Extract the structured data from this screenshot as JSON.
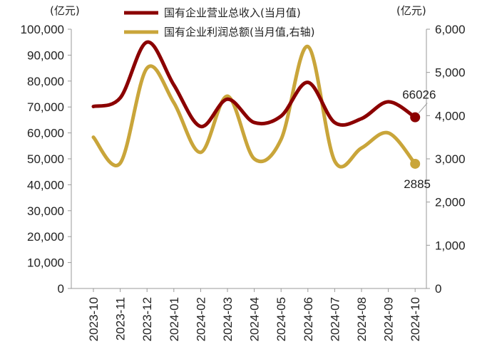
{
  "chart_data": {
    "type": "line",
    "left_unit": "(亿元)",
    "right_unit": "(亿元)",
    "x": [
      "2023-10",
      "2023-11",
      "2023-12",
      "2024-01",
      "2024-02",
      "2024-03",
      "2024-04",
      "2024-05",
      "2024-06",
      "2024-07",
      "2024-08",
      "2024-09",
      "2024-10"
    ],
    "y_left": {
      "min": 0,
      "max": 100000,
      "ticks": [
        "0",
        "10,000",
        "20,000",
        "30,000",
        "40,000",
        "50,000",
        "60,000",
        "70,000",
        "80,000",
        "90,000",
        "100,000"
      ]
    },
    "y_right": {
      "min": 0,
      "max": 6000,
      "ticks": [
        "0",
        "1,000",
        "2,000",
        "3,000",
        "4,000",
        "5,000",
        "6,000"
      ]
    },
    "series": [
      {
        "name": "国有企业营业总收入(当月值)",
        "axis": "left",
        "color": "#8B0000",
        "values": [
          70200,
          73500,
          95000,
          78500,
          62500,
          73000,
          64000,
          66500,
          79500,
          64000,
          65500,
          72000,
          66026
        ],
        "end_label": "66026"
      },
      {
        "name": "国有企业利润总额(当月值,右轴)",
        "axis": "right",
        "color": "#C9A53A",
        "values": [
          3500,
          2900,
          5100,
          4300,
          3150,
          4450,
          3000,
          3450,
          5600,
          2950,
          3250,
          3600,
          2885
        ],
        "end_label": "2885"
      }
    ],
    "grid": false,
    "legend_position": "top"
  }
}
